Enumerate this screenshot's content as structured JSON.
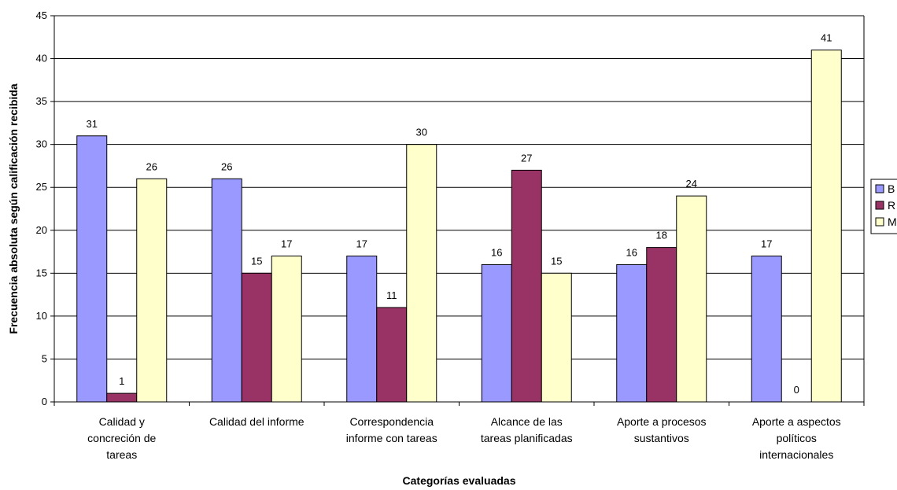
{
  "chart_data": {
    "type": "bar",
    "xlabel": "Categorías evaluadas",
    "ylabel": "Frecuencia absoluta según calificación recibida",
    "ylim": [
      0,
      45
    ],
    "ytick_step": 5,
    "grid": true,
    "legend_position": "right",
    "categories": [
      [
        "Calidad y",
        "concreción de",
        "tareas"
      ],
      [
        "Calidad del informe"
      ],
      [
        "Correspondencia",
        "informe con tareas"
      ],
      [
        "Alcance de las",
        "tareas planificadas"
      ],
      [
        "Aporte a procesos",
        "sustantivos"
      ],
      [
        "Aporte a aspectos",
        "políticos",
        "internacionales"
      ]
    ],
    "series": [
      {
        "name": "B",
        "color": "#9999ff",
        "values": [
          31,
          26,
          17,
          16,
          16,
          17
        ]
      },
      {
        "name": "R",
        "color": "#993366",
        "values": [
          1,
          15,
          11,
          27,
          18,
          0
        ]
      },
      {
        "name": "M",
        "color": "#ffffcc",
        "values": [
          26,
          17,
          30,
          15,
          24,
          41
        ]
      }
    ]
  }
}
